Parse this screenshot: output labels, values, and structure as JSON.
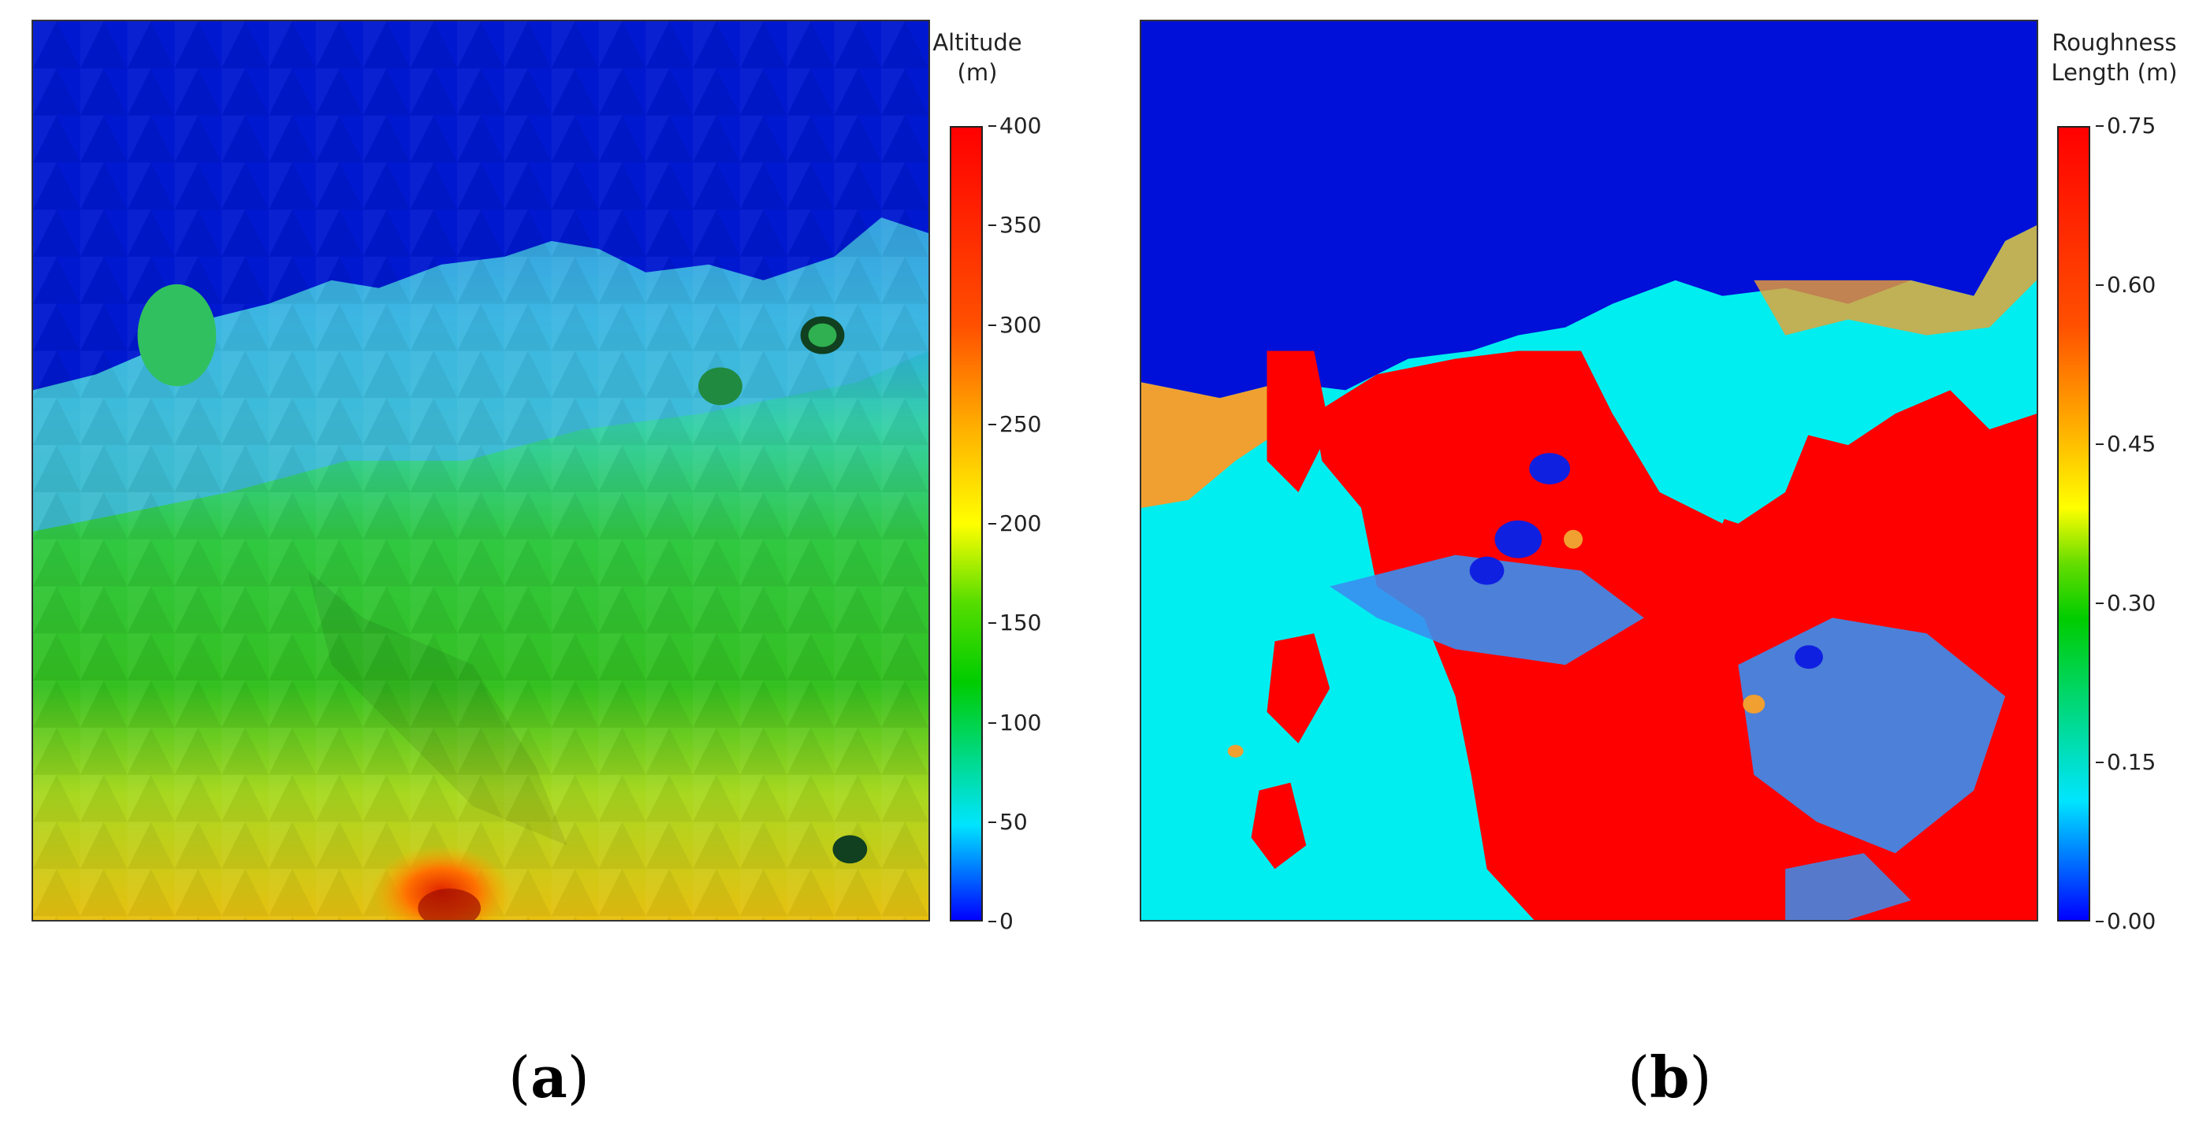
{
  "panels": [
    {
      "label": "a",
      "colorbar": {
        "title_line1": "Altitude",
        "title_line2": "(m)",
        "ticks": [
          "400",
          "350",
          "300",
          "250",
          "200",
          "150",
          "100",
          "50",
          "0"
        ],
        "min": 0,
        "max": 400
      }
    },
    {
      "label": "b",
      "colorbar": {
        "title_line1": "Roughness",
        "title_line2": "Length (m)",
        "ticks": [
          "0.75",
          "0.60",
          "0.45",
          "0.30",
          "0.15",
          "0.00"
        ],
        "min": 0,
        "max": 0.75
      }
    }
  ],
  "colors": {
    "sea": "#0010d8",
    "cyan": "#00eef0",
    "red": "#ff0000",
    "orange": "#f0a030",
    "light_blue": "#3a8ef0",
    "dark_blue": "#1020e0"
  }
}
